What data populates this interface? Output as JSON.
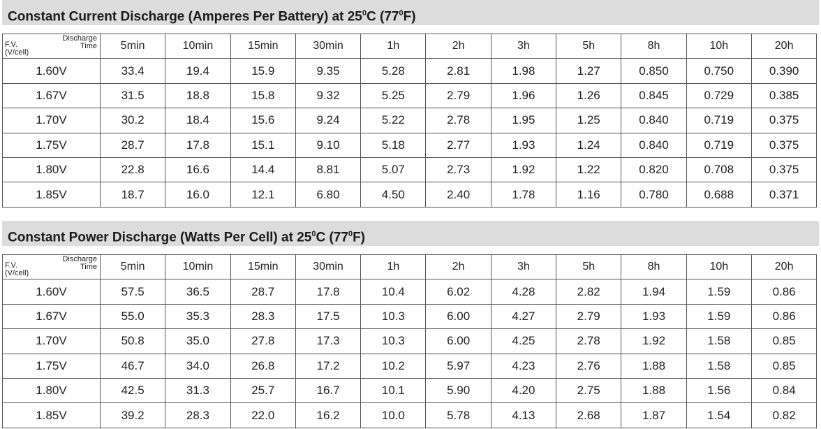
{
  "tables": [
    {
      "title": "Constant Current Discharge (Amperes Per Battery) at 25",
      "title_deg1": "0",
      "title_mid": "C (77",
      "title_deg2": "0",
      "title_end": "F)",
      "corner_top": "Discharge\nTime",
      "corner_bottom": "F.V.\n(V/cell)",
      "columns": [
        "5min",
        "10min",
        "15min",
        "30min",
        "1h",
        "2h",
        "3h",
        "5h",
        "8h",
        "10h",
        "20h"
      ],
      "rows": [
        {
          "label": "1.60V",
          "values": [
            "33.4",
            "19.4",
            "15.9",
            "9.35",
            "5.28",
            "2.81",
            "1.98",
            "1.27",
            "0.850",
            "0.750",
            "0.390"
          ]
        },
        {
          "label": "1.67V",
          "values": [
            "31.5",
            "18.8",
            "15.8",
            "9.32",
            "5.25",
            "2.79",
            "1.96",
            "1.26",
            "0.845",
            "0.729",
            "0.385"
          ]
        },
        {
          "label": "1.70V",
          "values": [
            "30.2",
            "18.4",
            "15.6",
            "9.24",
            "5.22",
            "2.78",
            "1.95",
            "1.25",
            "0.840",
            "0.719",
            "0.375"
          ]
        },
        {
          "label": "1.75V",
          "values": [
            "28.7",
            "17.8",
            "15.1",
            "9.10",
            "5.18",
            "2.77",
            "1.93",
            "1.24",
            "0.840",
            "0.719",
            "0.375"
          ]
        },
        {
          "label": "1.80V",
          "values": [
            "22.8",
            "16.6",
            "14.4",
            "8.81",
            "5.07",
            "2.73",
            "1.92",
            "1.22",
            "0.820",
            "0.708",
            "0.375"
          ]
        },
        {
          "label": "1.85V",
          "values": [
            "18.7",
            "16.0",
            "12.1",
            "6.80",
            "4.50",
            "2.40",
            "1.78",
            "1.16",
            "0.780",
            "0.688",
            "0.371"
          ]
        }
      ]
    },
    {
      "title": "Constant Power Discharge (Watts Per Cell) at 25",
      "title_deg1": "0",
      "title_mid": "C (77",
      "title_deg2": "0",
      "title_end": "F)",
      "corner_top": "Discharge\nTime",
      "corner_bottom": "F.V.\n(V/cell)",
      "columns": [
        "5min",
        "10min",
        "15min",
        "30min",
        "1h",
        "2h",
        "3h",
        "5h",
        "8h",
        "10h",
        "20h"
      ],
      "rows": [
        {
          "label": "1.60V",
          "values": [
            "57.5",
            "36.5",
            "28.7",
            "17.8",
            "10.4",
            "6.02",
            "4.28",
            "2.82",
            "1.94",
            "1.59",
            "0.86"
          ]
        },
        {
          "label": "1.67V",
          "values": [
            "55.0",
            "35.3",
            "28.3",
            "17.5",
            "10.3",
            "6.00",
            "4.27",
            "2.79",
            "1.93",
            "1.59",
            "0.86"
          ]
        },
        {
          "label": "1.70V",
          "values": [
            "50.8",
            "35.0",
            "27.8",
            "17.3",
            "10.3",
            "6.00",
            "4.25",
            "2.78",
            "1.92",
            "1.58",
            "0.85"
          ]
        },
        {
          "label": "1.75V",
          "values": [
            "46.7",
            "34.0",
            "26.8",
            "17.2",
            "10.2",
            "5.97",
            "4.23",
            "2.76",
            "1.88",
            "1.58",
            "0.85"
          ]
        },
        {
          "label": "1.80V",
          "values": [
            "42.5",
            "31.3",
            "25.7",
            "16.7",
            "10.1",
            "5.90",
            "4.20",
            "2.75",
            "1.88",
            "1.56",
            "0.84"
          ]
        },
        {
          "label": "1.85V",
          "values": [
            "39.2",
            "28.3",
            "22.0",
            "16.2",
            "10.0",
            "5.78",
            "4.13",
            "2.68",
            "1.87",
            "1.54",
            "0.82"
          ]
        }
      ]
    }
  ]
}
